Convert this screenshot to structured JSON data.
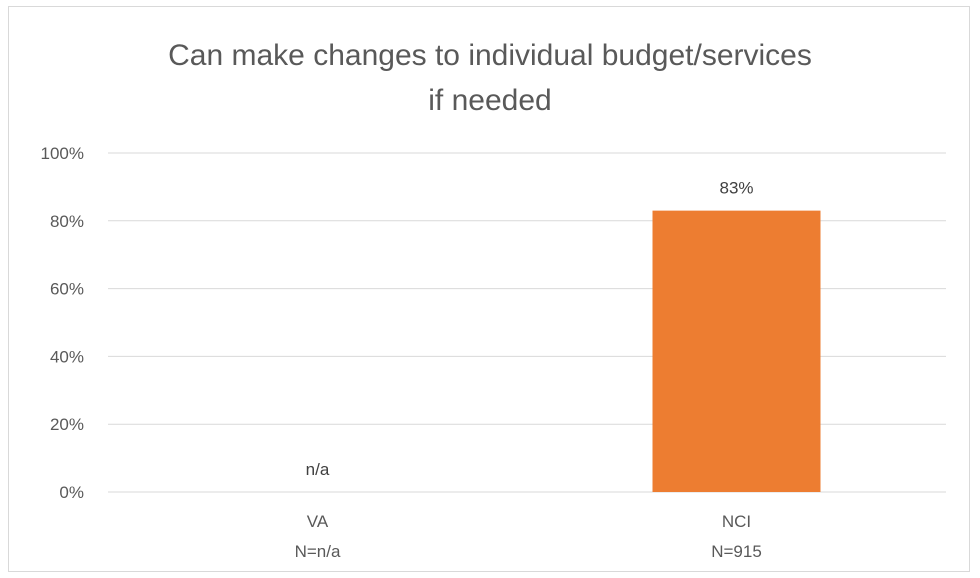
{
  "chart_data": {
    "type": "bar",
    "title_lines": [
      "Can make changes to individual budget/services",
      "if needed"
    ],
    "categories": [
      {
        "label": "VA",
        "sublabel": "N=n/a"
      },
      {
        "label": "NCI",
        "sublabel": "N=915"
      }
    ],
    "series": [
      {
        "values": [
          null,
          83
        ],
        "data_labels": [
          "n/a",
          "83%"
        ],
        "color": "#ED7D31"
      }
    ],
    "ylim": [
      0,
      100
    ],
    "yticks": [
      0,
      20,
      40,
      60,
      80,
      100
    ],
    "ytick_labels": [
      "0%",
      "20%",
      "40%",
      "60%",
      "80%",
      "100%"
    ],
    "xlabel": "",
    "ylabel": "",
    "grid": true,
    "legend": "none"
  }
}
